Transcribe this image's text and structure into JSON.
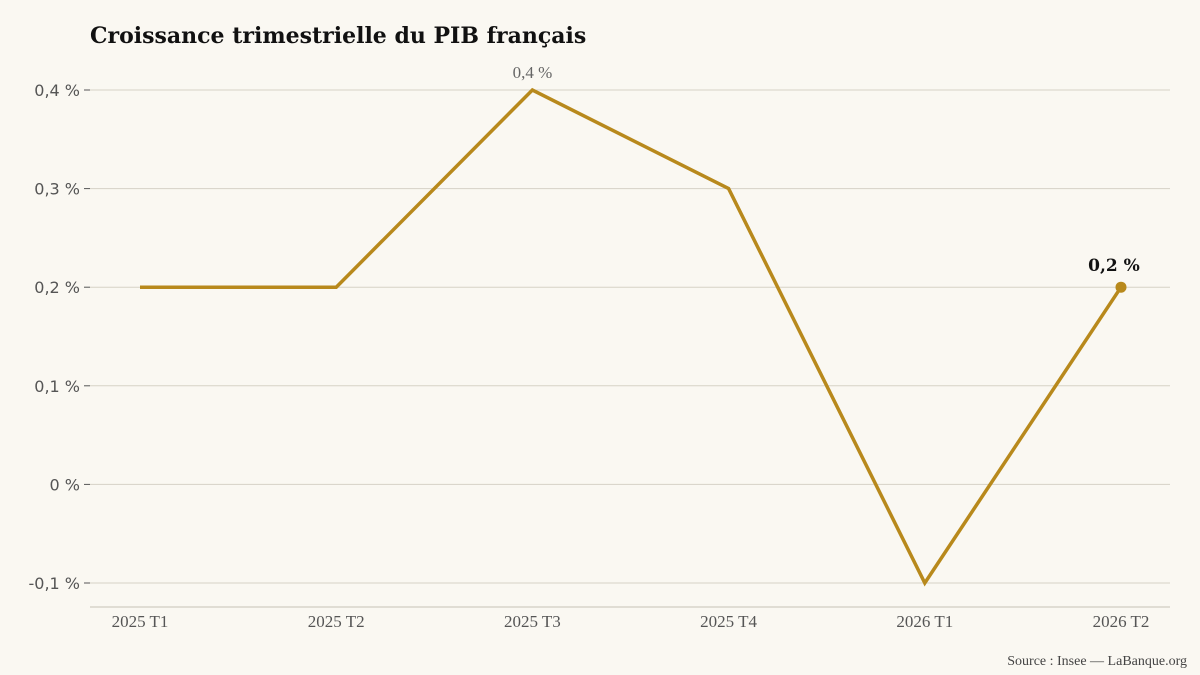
{
  "chart_data": {
    "type": "line",
    "title": "Croissance trimestrielle du PIB français",
    "categories": [
      "2025 T1",
      "2025 T2",
      "2025 T3",
      "2025 T4",
      "2026 T1",
      "2026 T2"
    ],
    "series": [
      {
        "values": [
          0.2,
          0.2,
          0.4,
          0.3,
          -0.1,
          0.2
        ],
        "color": "#b8891c"
      }
    ],
    "ylim": [
      -0.1,
      0.4
    ],
    "yticks": [
      {
        "value": 0.4,
        "label": "0,4 %"
      },
      {
        "value": 0.3,
        "label": "0,3 %"
      },
      {
        "value": 0.2,
        "label": "0,2 %"
      },
      {
        "value": 0.1,
        "label": "0,1 %"
      },
      {
        "value": 0,
        "label": "0 %"
      },
      {
        "value": -0.1,
        "label": "-0,1 %"
      }
    ],
    "annotations": [
      {
        "index": 2,
        "label": "0,4 %",
        "style": "peak"
      },
      {
        "index": 5,
        "label": "0,2 %",
        "style": "last",
        "marker": true
      }
    ],
    "grid": true,
    "legend": "none",
    "source": "Source : Insee — LaBanque.org"
  }
}
